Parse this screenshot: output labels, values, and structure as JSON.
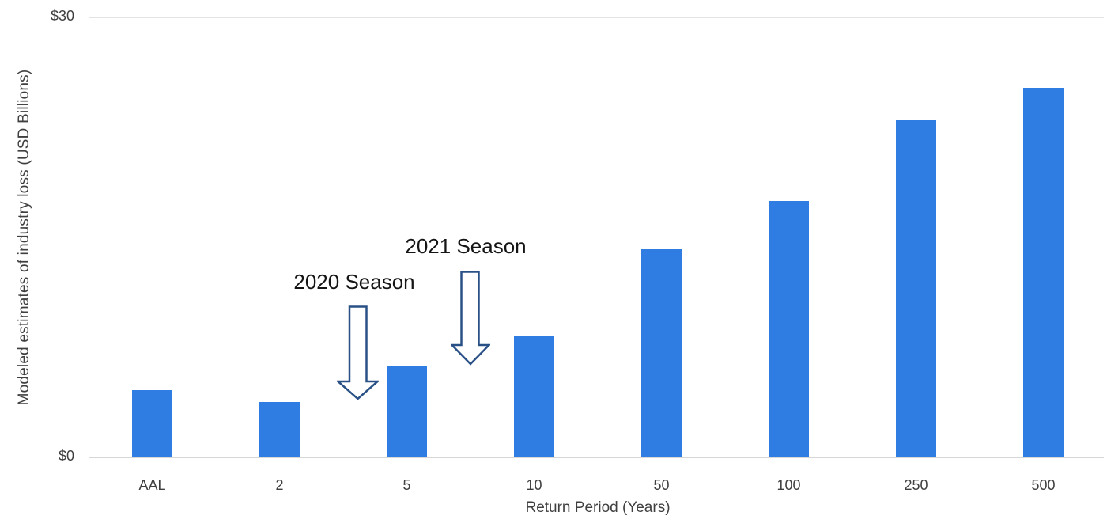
{
  "chart_data": {
    "type": "bar",
    "title": "",
    "categories": [
      "AAL",
      "2",
      "5",
      "10",
      "50",
      "100",
      "250",
      "500"
    ],
    "values": [
      4.6,
      3.8,
      6.2,
      8.3,
      14.2,
      17.5,
      23.0,
      25.2
    ],
    "xlabel": "Return Period (Years)",
    "ylabel": "Modeled estimates of industry loss (USD Billions)",
    "ylim": [
      0,
      30
    ],
    "yticks": [
      {
        "value": 30,
        "label": "$30"
      },
      {
        "value": 0,
        "label": "$0"
      }
    ],
    "grid": "single horizontal gridline at $30 and baseline at $0",
    "legend": "none",
    "bar_color": "#2F7CE2",
    "annotations": [
      {
        "label": "2020 Season",
        "arrow": "down-arrow-outline",
        "points_between": [
          "2",
          "5"
        ]
      },
      {
        "label": "2021 Season",
        "arrow": "down-arrow-outline",
        "points_between": [
          "5",
          "10"
        ]
      }
    ],
    "annotation_arrow_outline_color": "#2A5186"
  }
}
